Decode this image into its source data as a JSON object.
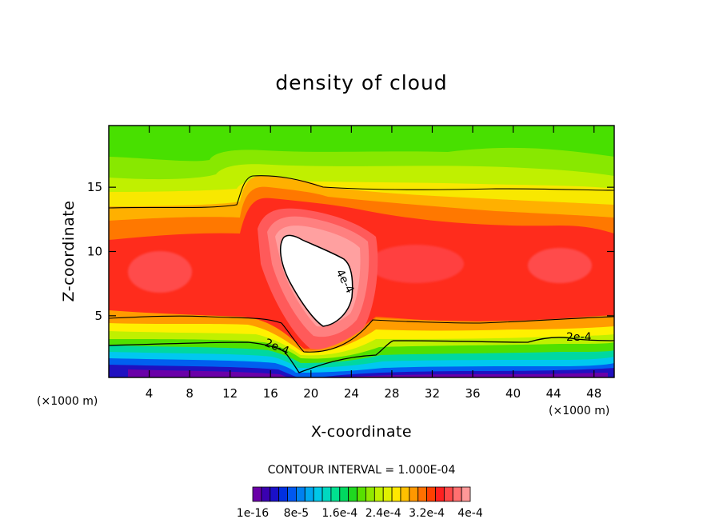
{
  "chart_data": {
    "type": "heatmap",
    "title": "density of cloud",
    "xlabel": "X-coordinate",
    "ylabel": "Z-coordinate",
    "x_unit": "(×1000 m)",
    "x_unit_right": "(×1000 m)",
    "xlim": [
      0,
      50
    ],
    "ylim": [
      0.2,
      19.8
    ],
    "x_ticks": [
      4,
      8,
      12,
      16,
      20,
      24,
      28,
      32,
      36,
      40,
      44,
      48
    ],
    "y_ticks": [
      5,
      10,
      15
    ],
    "contour_interval_text": "CONTOUR INTERVAL = 1.000E-04",
    "contour_line_labels": [
      "4e-4",
      "2e-4",
      "2e-4",
      "2e-4"
    ],
    "colorbar": {
      "colors": [
        "#6a00a8",
        "#3a00b0",
        "#1a10c8",
        "#0030e0",
        "#0058f0",
        "#0080f0",
        "#00a8f0",
        "#00c8e8",
        "#00d8c0",
        "#00e090",
        "#00d860",
        "#20d820",
        "#58e000",
        "#90e800",
        "#c0f000",
        "#e0f000",
        "#ffe800",
        "#ffc000",
        "#ff9800",
        "#ff7000",
        "#ff4000",
        "#ff2020",
        "#ff4848",
        "#ff7070",
        "#ff9898"
      ],
      "tick_labels": [
        "1e-16",
        "8e-5",
        "1.6e-4",
        "2.4e-4",
        "3.2e-4",
        "4e-4"
      ]
    }
  }
}
